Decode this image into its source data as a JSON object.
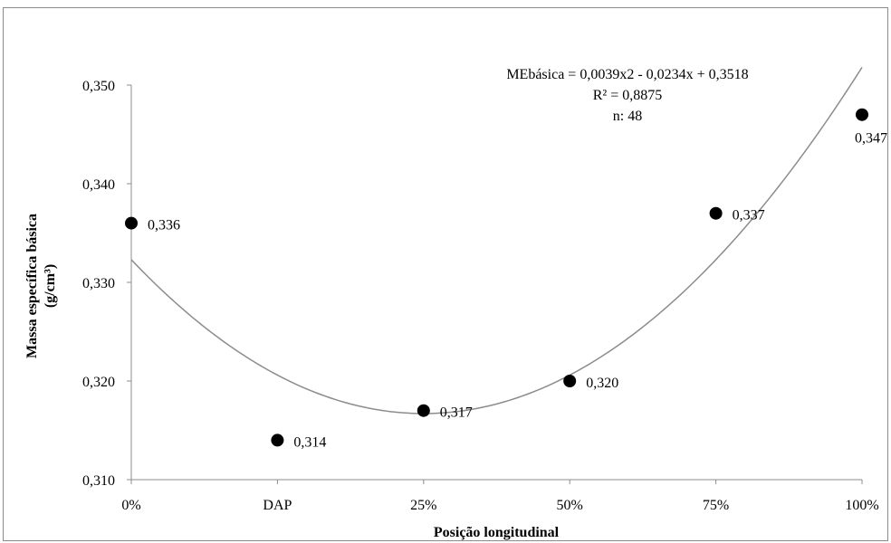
{
  "chart_data": {
    "type": "scatter",
    "categories": [
      "0%",
      "DAP",
      "25%",
      "50%",
      "75%",
      "100%"
    ],
    "series": [
      {
        "values": [
          0.336,
          0.314,
          0.317,
          0.32,
          0.337,
          0.347
        ],
        "labels": [
          "0,336",
          "0,314",
          "0,317",
          "0,320",
          "0,337",
          "0,347"
        ]
      }
    ],
    "trendline": {
      "type": "polynomial",
      "a": 0.0039,
      "b": -0.0234,
      "c": 0.3518
    },
    "yticks": [
      "0,310",
      "0,320",
      "0,330",
      "0,340",
      "0,350"
    ],
    "ylim": [
      0.31,
      0.35
    ],
    "xlabel": "Posição longitudinal",
    "ylabel_line1": "Massa específica básica",
    "ylabel_line2": "(g/cm³)",
    "annotation": {
      "equation": "MEbásica = 0,0039x2 - 0,0234x + 0,3518",
      "r2": "R² = 0,8875",
      "n": "n: 48"
    },
    "marker_color": "#000000",
    "trend_color": "#8c8c8c",
    "axis_color": "#8c8c8c"
  }
}
